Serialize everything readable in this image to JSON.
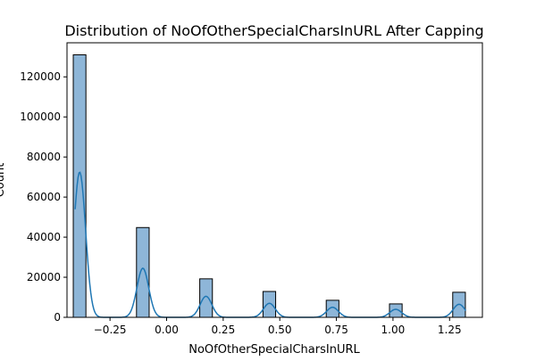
{
  "chart_data": {
    "type": "bar",
    "title": "Distribution of NoOfOtherSpecialCharsInURL After Capping",
    "xlabel": "NoOfOtherSpecialCharsInURL",
    "ylabel": "Count",
    "xlim": [
      -0.44,
      1.395
    ],
    "ylim": [
      0,
      137000
    ],
    "x_ticks": [
      -0.25,
      0.0,
      0.25,
      0.5,
      0.75,
      1.0,
      1.25
    ],
    "x_tick_labels": [
      "−0.25",
      "0.00",
      "0.25",
      "0.50",
      "0.75",
      "1.00",
      "1.25"
    ],
    "y_ticks": [
      0,
      20000,
      40000,
      60000,
      80000,
      100000,
      120000
    ],
    "y_tick_labels": [
      "0",
      "20000",
      "40000",
      "60000",
      "80000",
      "100000",
      "120000"
    ],
    "grid": false,
    "bin_width": 0.0559,
    "bars": [
      {
        "x_start": -0.3564,
        "count": 131000
      },
      {
        "x_start": -0.0771,
        "count": 44800
      },
      {
        "x_start": 0.2023,
        "count": 19200
      },
      {
        "x_start": 0.4817,
        "count": 12900
      },
      {
        "x_start": 0.7611,
        "count": 8500
      },
      {
        "x_start": 1.0404,
        "count": 6700
      },
      {
        "x_start": 1.3198,
        "count": 12500
      }
    ],
    "kde": {
      "peak_centers": [
        -0.384,
        -0.105,
        0.174,
        0.454,
        0.733,
        1.012,
        1.292
      ],
      "peak_heights": [
        72500,
        24500,
        10500,
        7000,
        5000,
        4000,
        6500
      ],
      "peak_width": 0.026
    },
    "colors": {
      "bar_fill": "#8eb6d8",
      "bar_edge": "#000000",
      "kde_line": "#1f77b4"
    }
  }
}
